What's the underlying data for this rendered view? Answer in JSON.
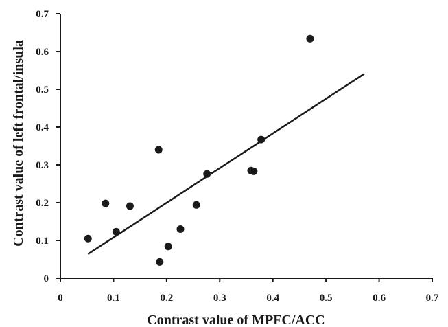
{
  "chart_data": {
    "type": "scatter",
    "xlabel": "Contrast value of MPFC/ACC",
    "ylabel": "Contrast value of left frontal/insula",
    "xlim": [
      0,
      0.7
    ],
    "ylim": [
      0,
      0.7
    ],
    "x_ticks": [
      "0",
      "0.1",
      "0.2",
      "0.3",
      "0.4",
      "0.5",
      "0.6",
      "0.7"
    ],
    "y_ticks": [
      "0",
      "0.1",
      "0.2",
      "0.3",
      "0.4",
      "0.5",
      "0.6",
      "0.7"
    ],
    "grid": false,
    "legend": "none",
    "points": [
      {
        "x": 0.052,
        "y": 0.105
      },
      {
        "x": 0.085,
        "y": 0.198
      },
      {
        "x": 0.105,
        "y": 0.123
      },
      {
        "x": 0.131,
        "y": 0.191
      },
      {
        "x": 0.185,
        "y": 0.34
      },
      {
        "x": 0.187,
        "y": 0.043
      },
      {
        "x": 0.203,
        "y": 0.084
      },
      {
        "x": 0.226,
        "y": 0.13
      },
      {
        "x": 0.256,
        "y": 0.194
      },
      {
        "x": 0.276,
        "y": 0.276
      },
      {
        "x": 0.359,
        "y": 0.285
      },
      {
        "x": 0.364,
        "y": 0.283
      },
      {
        "x": 0.378,
        "y": 0.367
      },
      {
        "x": 0.47,
        "y": 0.634
      }
    ],
    "trendline": {
      "x": [
        0.052,
        0.572
      ],
      "y": [
        0.064,
        0.541
      ]
    },
    "colors": {
      "marker": "#1a1a1a",
      "line": "#1a1a1a",
      "axis": "#1a1a1a"
    }
  }
}
